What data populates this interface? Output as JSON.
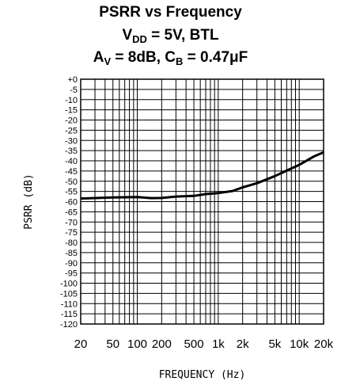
{
  "title": {
    "line1": "PSRR vs Frequency",
    "line2_main": "V",
    "line2_sub": "DD",
    "line2_rest": " = 5V, BTL",
    "line3_a": "A",
    "line3_a_sub": "V",
    "line3_mid": " = 8dB, C",
    "line3_c_sub": "B",
    "line3_rest": " = 0.47μF"
  },
  "chart_data": {
    "type": "line",
    "title": "PSRR vs Frequency",
    "xlabel": "FREQUENCY (Hz)",
    "ylabel": "PSRR (dB)",
    "x_scale": "log",
    "xlim": [
      20,
      20000
    ],
    "ylim": [
      -120,
      0
    ],
    "grid": true,
    "x_ticks": [
      20,
      50,
      100,
      200,
      500,
      1000,
      2000,
      5000,
      10000,
      20000
    ],
    "x_tick_labels": [
      "20",
      "50",
      "100",
      "200",
      "500",
      "1k",
      "2k",
      "5k",
      "10k",
      "20k"
    ],
    "y_ticks": [
      0,
      -5,
      -10,
      -15,
      -20,
      -25,
      -30,
      -35,
      -40,
      -45,
      -50,
      -55,
      -60,
      -65,
      -70,
      -75,
      -80,
      -85,
      -90,
      -95,
      -100,
      -105,
      -110,
      -115,
      -120
    ],
    "y_tick_labels": [
      "+0",
      "-5",
      "-10",
      "-15",
      "-20",
      "-25",
      "-30",
      "-35",
      "-40",
      "-45",
      "-50",
      "-55",
      "-60",
      "-65",
      "-70",
      "-75",
      "-80",
      "-85",
      "-90",
      "-95",
      "-100",
      "-105",
      "-110",
      "-115",
      "-120"
    ],
    "series": [
      {
        "x": [
          20,
          50,
          100,
          150,
          200,
          300,
          500,
          700,
          1000,
          1500,
          2000,
          3000,
          5000,
          7000,
          10000,
          15000,
          20000
        ],
        "y": [
          -58.5,
          -58,
          -57.8,
          -58.3,
          -58.2,
          -57.5,
          -57.2,
          -56.3,
          -55.8,
          -54.8,
          -53,
          -51,
          -47.5,
          -44.8,
          -42,
          -38,
          -35.8
        ]
      }
    ]
  }
}
